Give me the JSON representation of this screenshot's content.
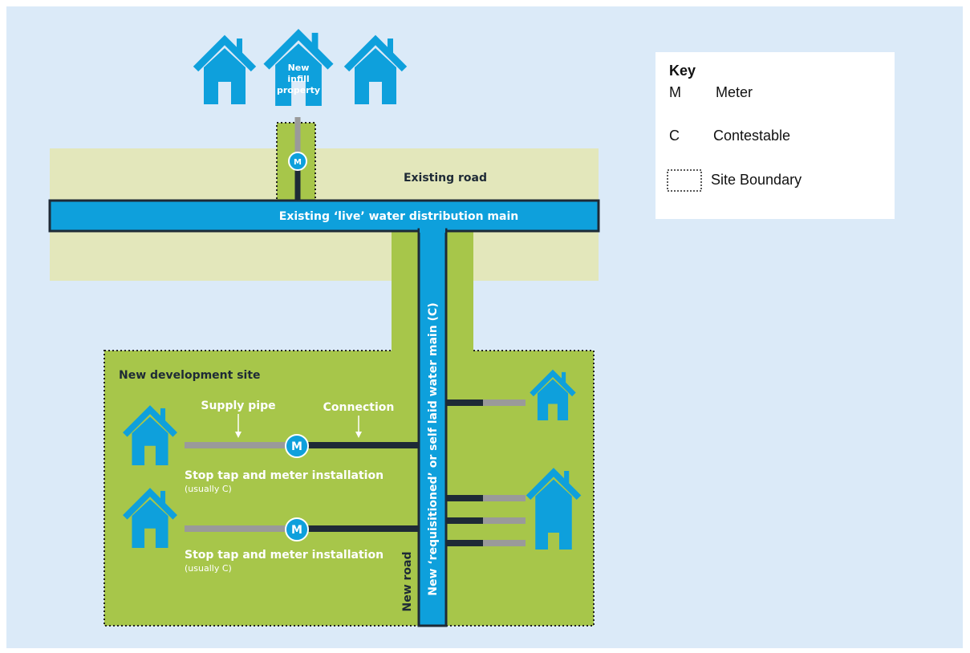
{
  "diagram": {
    "top_house_label": [
      "New",
      "infill",
      "property"
    ],
    "existing_road": "Existing road",
    "main_label": "Existing ‘live’ water distribution main",
    "meter_symbol": "M",
    "site_label": "New development site",
    "supply_pipe": "Supply pipe",
    "connection": "Connection",
    "stop_tap_1": "Stop tap and meter installation",
    "usually_1": "(usually C)",
    "stop_tap_2": "Stop tap and meter installation",
    "usually_2": "(usually C)",
    "new_main": "New ‘requisitioned’ or self laid water main (C)",
    "new_road": "New road"
  },
  "key": {
    "title": "Key",
    "items": [
      {
        "symbol": "M",
        "label": "Meter"
      },
      {
        "symbol": "C",
        "label": "Contestable"
      },
      {
        "label": "Site Boundary"
      }
    ]
  }
}
